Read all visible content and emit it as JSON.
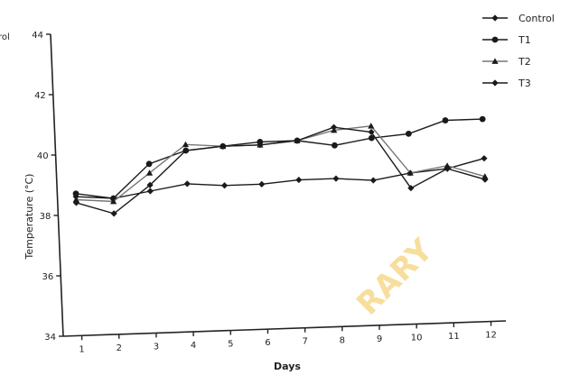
{
  "chart_data": {
    "type": "line",
    "xlabel": "Days",
    "ylabel": "Temperature (°C)",
    "x": [
      1,
      2,
      3,
      4,
      5,
      6,
      7,
      8,
      9,
      10,
      11,
      12
    ],
    "ylim": [
      34,
      44
    ],
    "yticks": [
      34,
      36,
      38,
      40,
      42,
      44
    ],
    "grid": false,
    "legend_position": "top-right",
    "series": [
      {
        "name": "Control",
        "marker": "diamond",
        "values": [
          38.6,
          38.5,
          38.7,
          38.9,
          38.8,
          38.8,
          38.9,
          38.9,
          38.8,
          39.0,
          39.1,
          39.4
        ]
      },
      {
        "name": "T1",
        "marker": "circle",
        "values": [
          38.7,
          38.5,
          39.6,
          40.0,
          40.1,
          40.2,
          40.2,
          40.0,
          40.2,
          40.3,
          40.7,
          40.7
        ]
      },
      {
        "name": "T2",
        "marker": "triangle",
        "values": [
          38.5,
          38.4,
          39.3,
          40.2,
          40.1,
          40.1,
          40.2,
          40.5,
          40.6,
          39.0,
          39.2,
          38.8
        ]
      },
      {
        "name": "T3",
        "marker": "diamond",
        "values": [
          38.4,
          38.0,
          38.9,
          40.0,
          40.1,
          40.1,
          40.2,
          40.6,
          40.4,
          38.5,
          39.1,
          38.7
        ]
      }
    ]
  },
  "cut_text": "rol",
  "watermark_text": "RARY"
}
